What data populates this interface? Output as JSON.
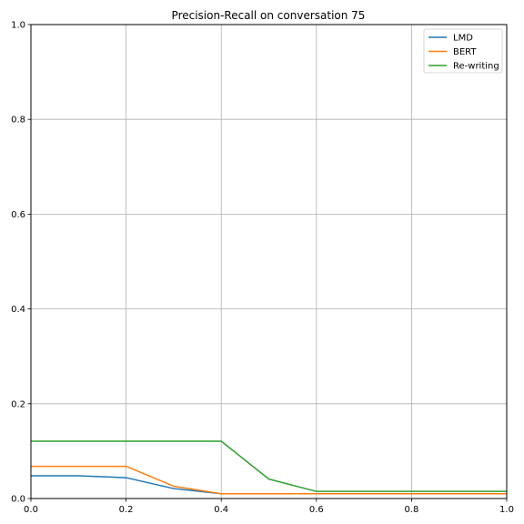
{
  "chart_data": {
    "type": "line",
    "title": "Precision-Recall on conversation 75",
    "xlabel": "",
    "ylabel": "",
    "xlim": [
      0,
      1
    ],
    "ylim": [
      0,
      1
    ],
    "grid": true,
    "legend_position": "top-right",
    "x_ticks": [
      "0.0",
      "0.2",
      "0.4",
      "0.6",
      "0.8",
      "1.0"
    ],
    "y_ticks": [
      "0.0",
      "0.2",
      "0.4",
      "0.6",
      "0.8",
      "1.0"
    ],
    "x": [
      0.0,
      0.1,
      0.2,
      0.3,
      0.4,
      0.5,
      0.6,
      0.7,
      0.8,
      0.9,
      1.0
    ],
    "series": [
      {
        "name": "LMD",
        "color": "#1f77b4",
        "values": [
          0.048,
          0.048,
          0.044,
          0.021,
          0.01,
          0.01,
          0.01,
          0.01,
          0.01,
          0.01,
          0.01
        ]
      },
      {
        "name": "BERT",
        "color": "#ff7f0e",
        "values": [
          0.068,
          0.068,
          0.068,
          0.026,
          0.01,
          0.01,
          0.01,
          0.01,
          0.01,
          0.01,
          0.01
        ]
      },
      {
        "name": "Re-writing",
        "color": "#2ca02c",
        "values": [
          0.121,
          0.121,
          0.121,
          0.121,
          0.121,
          0.041,
          0.015,
          0.015,
          0.015,
          0.015,
          0.015
        ]
      }
    ]
  }
}
